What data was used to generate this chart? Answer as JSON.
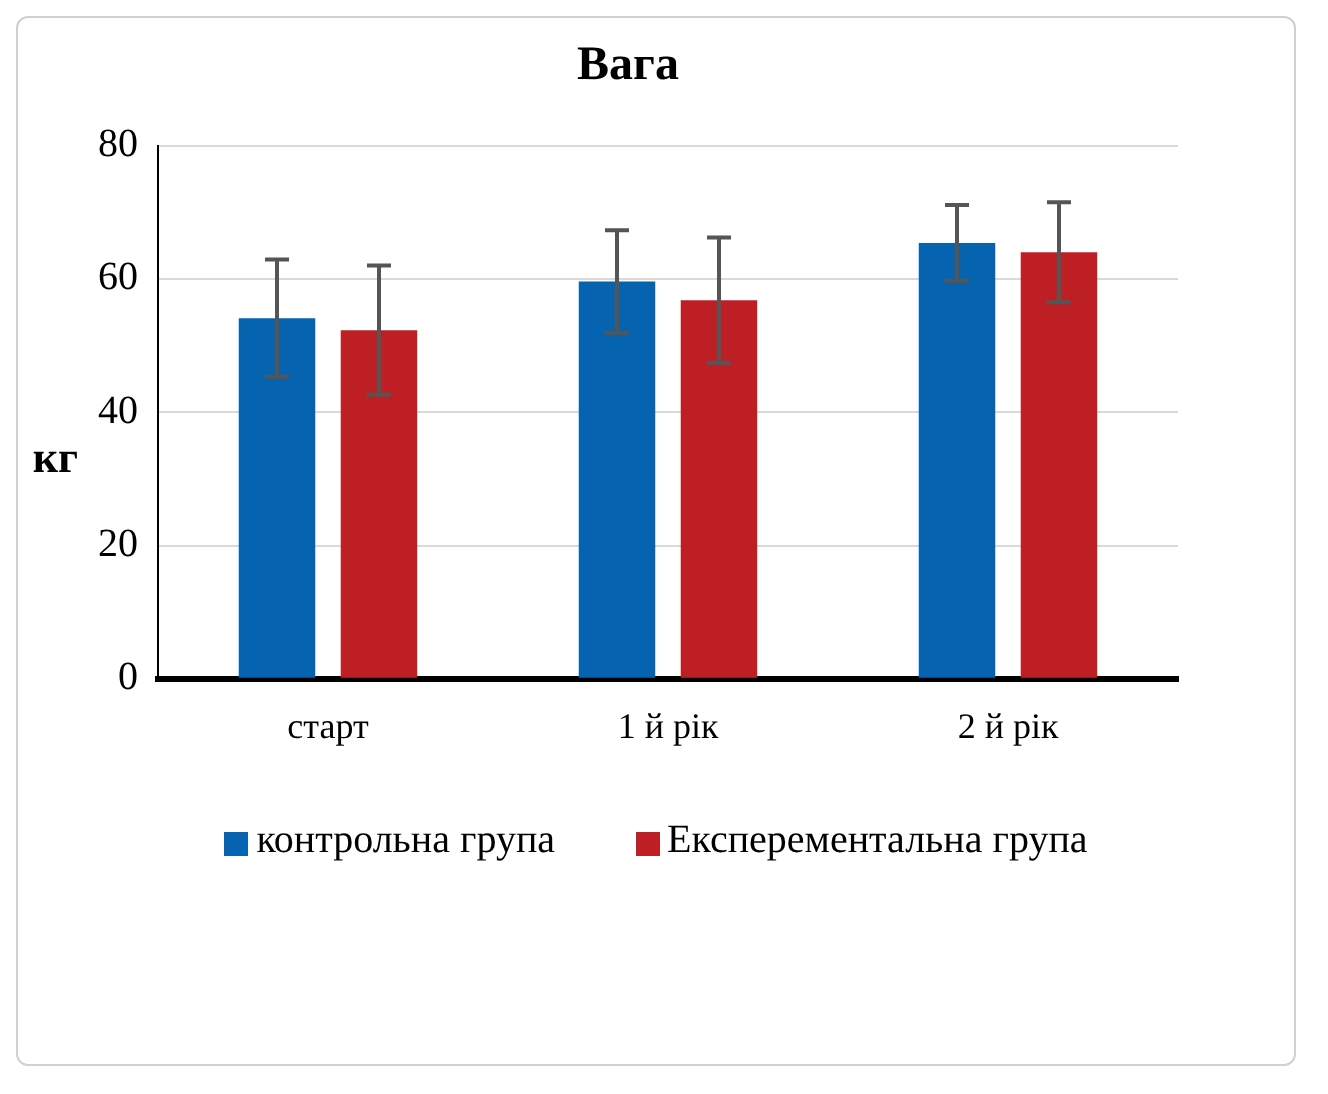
{
  "chart_data": {
    "type": "bar",
    "title": "Вага",
    "ylabel": "кг",
    "categories": [
      "старт",
      "1 й рік",
      "2 й рік"
    ],
    "series": [
      {
        "name": "контрольна група",
        "color": "#0563b0",
        "values": [
          54.1,
          59.6,
          65.4
        ],
        "errors": [
          8.8,
          7.7,
          5.7
        ]
      },
      {
        "name": "Експерементальна група",
        "color": "#bd1f24",
        "values": [
          52.3,
          56.8,
          64.0
        ],
        "errors": [
          9.7,
          9.4,
          7.5
        ]
      }
    ],
    "ylim": [
      0,
      80
    ],
    "yticks": [
      0,
      20,
      40,
      60,
      80
    ],
    "grid": "y",
    "legend": "bottom"
  }
}
